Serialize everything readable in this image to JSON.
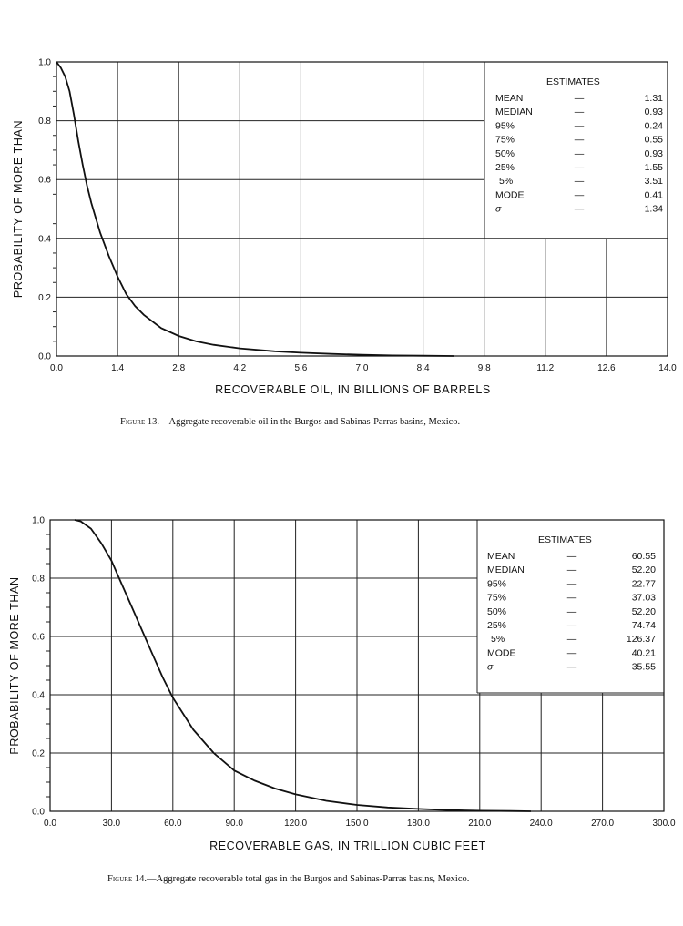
{
  "chart_data": [
    {
      "type": "line",
      "caption": "13.—Aggregate recoverable oil in the Burgos and Sabinas-Parras basins, Mexico.",
      "figure_label": "Figure",
      "xlabel": "RECOVERABLE OIL, IN BILLIONS OF BARRELS",
      "ylabel": "PROBABILITY OF MORE THAN",
      "xlim": [
        0,
        14
      ],
      "ylim": [
        0,
        1
      ],
      "x_ticks": [
        "0.0",
        "1.4",
        "2.8",
        "4.2",
        "5.6",
        "7.0",
        "8.4",
        "9.8",
        "11.2",
        "12.6",
        "14.0"
      ],
      "y_ticks": [
        "0.0",
        "0.2",
        "0.4",
        "0.6",
        "0.8",
        "1.0"
      ],
      "estimates_title": "ESTIMATES",
      "estimates": [
        {
          "label": "MEAN",
          "dash": "—",
          "value": "1.31"
        },
        {
          "label": "MEDIAN",
          "dash": "—",
          "value": "0.93"
        },
        {
          "label": "95%",
          "dash": "—",
          "value": "0.24"
        },
        {
          "label": "75%",
          "dash": "—",
          "value": "0.55"
        },
        {
          "label": "50%",
          "dash": "—",
          "value": "0.93"
        },
        {
          "label": "25%",
          "dash": "—",
          "value": "1.55"
        },
        {
          "label": "5%",
          "dash": "—",
          "value": "3.51"
        },
        {
          "label": "MODE",
          "dash": "—",
          "value": "0.41"
        },
        {
          "label": "σ",
          "dash": "—",
          "value": "1.34"
        }
      ],
      "series": [
        {
          "x": [
            0,
            0.1,
            0.2,
            0.3,
            0.4,
            0.5,
            0.6,
            0.7,
            0.8,
            0.9,
            1.0,
            1.2,
            1.4,
            1.6,
            1.8,
            2.0,
            2.4,
            2.8,
            3.2,
            3.6,
            4.2,
            5.0,
            5.6,
            6.3,
            7.0,
            7.7,
            8.4,
            9.1
          ],
          "y": [
            1.0,
            0.98,
            0.95,
            0.9,
            0.82,
            0.73,
            0.65,
            0.58,
            0.52,
            0.47,
            0.42,
            0.34,
            0.27,
            0.21,
            0.17,
            0.14,
            0.095,
            0.068,
            0.05,
            0.038,
            0.026,
            0.016,
            0.011,
            0.007,
            0.004,
            0.002,
            0.001,
            0.0
          ]
        }
      ]
    },
    {
      "type": "line",
      "caption": "14.—Aggregate recoverable total gas in the Burgos and Sabinas-Parras basins, Mexico.",
      "figure_label": "Figure",
      "xlabel": "RECOVERABLE GAS, IN TRILLION CUBIC FEET",
      "ylabel": "PROBABILITY OF MORE THAN",
      "xlim": [
        0,
        300
      ],
      "ylim": [
        0,
        1
      ],
      "x_ticks": [
        "0.0",
        "30.0",
        "60.0",
        "90.0",
        "120.0",
        "150.0",
        "180.0",
        "210.0",
        "240.0",
        "270.0",
        "300.0"
      ],
      "y_ticks": [
        "0.0",
        "0.2",
        "0.4",
        "0.6",
        "0.8",
        "1.0"
      ],
      "estimates_title": "ESTIMATES",
      "estimates": [
        {
          "label": "MEAN",
          "dash": "—",
          "value": "60.55"
        },
        {
          "label": "MEDIAN",
          "dash": "—",
          "value": "52.20"
        },
        {
          "label": "95%",
          "dash": "—",
          "value": "22.77"
        },
        {
          "label": "75%",
          "dash": "—",
          "value": "37.03"
        },
        {
          "label": "50%",
          "dash": "—",
          "value": "52.20"
        },
        {
          "label": "25%",
          "dash": "—",
          "value": "74.74"
        },
        {
          "label": "5%",
          "dash": "—",
          "value": "126.37"
        },
        {
          "label": "MODE",
          "dash": "—",
          "value": "40.21"
        },
        {
          "label": "σ",
          "dash": "—",
          "value": "35.55"
        }
      ],
      "series": [
        {
          "x": [
            12,
            15,
            20,
            25,
            30,
            35,
            40,
            45,
            50,
            55,
            60,
            70,
            80,
            90,
            100,
            110,
            120,
            135,
            150,
            165,
            180,
            195,
            210,
            225,
            235
          ],
          "y": [
            1.0,
            0.995,
            0.97,
            0.92,
            0.86,
            0.78,
            0.7,
            0.62,
            0.54,
            0.46,
            0.39,
            0.28,
            0.2,
            0.14,
            0.105,
            0.078,
            0.058,
            0.036,
            0.022,
            0.013,
            0.008,
            0.004,
            0.002,
            0.001,
            0.0
          ]
        }
      ]
    }
  ]
}
